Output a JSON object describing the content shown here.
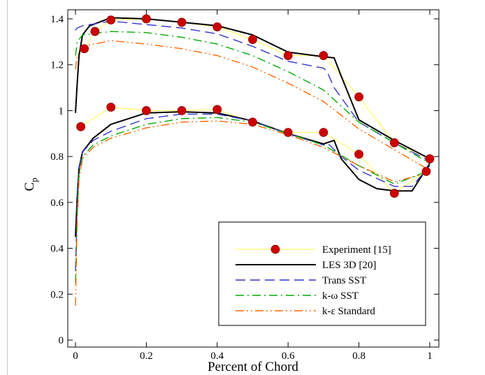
{
  "chart_data": {
    "type": "line",
    "title": "",
    "xlabel": "Percent of Chord",
    "ylabel": "C",
    "ylabel_subscript": "p",
    "xlim": [
      0,
      1
    ],
    "ylim": [
      0,
      1.4
    ],
    "xticks": [
      0,
      0.2,
      0.4,
      0.6,
      0.8,
      1
    ],
    "xtick_labels": [
      "0",
      "0.2",
      "0.4",
      "0.6",
      "0.8",
      "1"
    ],
    "yticks": [
      0,
      0.2,
      0.4,
      0.6,
      0.8,
      1,
      1.2,
      1.4
    ],
    "ytick_labels": [
      "0",
      "0.2",
      "0.4",
      "0.6",
      "0.8",
      "1",
      "1.2",
      "1.4"
    ],
    "legend_position": "bottom-right",
    "grid": false,
    "series": [
      {
        "name": "Experiment [15]",
        "style": "line-markers",
        "color": "#ffff66",
        "marker_color": "#cc0000",
        "upper": [
          [
            0.025,
            1.27
          ],
          [
            0.055,
            1.345
          ],
          [
            0.1,
            1.395
          ],
          [
            0.2,
            1.4
          ],
          [
            0.3,
            1.385
          ],
          [
            0.4,
            1.365
          ],
          [
            0.5,
            1.31
          ],
          [
            0.6,
            1.24
          ],
          [
            0.7,
            1.24
          ],
          [
            0.8,
            1.06
          ],
          [
            0.9,
            0.86
          ],
          [
            1.0,
            0.79
          ]
        ],
        "lower": [
          [
            0.015,
            0.93
          ],
          [
            0.1,
            1.015
          ],
          [
            0.2,
            1.0
          ],
          [
            0.3,
            1.0
          ],
          [
            0.4,
            1.005
          ],
          [
            0.5,
            0.95
          ],
          [
            0.6,
            0.905
          ],
          [
            0.7,
            0.905
          ],
          [
            0.8,
            0.81
          ],
          [
            0.9,
            0.64
          ],
          [
            0.99,
            0.735
          ]
        ]
      },
      {
        "name": "LES 3D [20]",
        "style": "solid",
        "color": "#000000",
        "upper": [
          [
            0,
            0.99
          ],
          [
            0.005,
            1.12
          ],
          [
            0.01,
            1.24
          ],
          [
            0.02,
            1.33
          ],
          [
            0.04,
            1.37
          ],
          [
            0.1,
            1.405
          ],
          [
            0.2,
            1.4
          ],
          [
            0.3,
            1.385
          ],
          [
            0.4,
            1.37
          ],
          [
            0.5,
            1.33
          ],
          [
            0.6,
            1.255
          ],
          [
            0.7,
            1.235
          ],
          [
            0.73,
            1.23
          ],
          [
            0.75,
            1.15
          ],
          [
            0.8,
            0.96
          ],
          [
            0.9,
            0.87
          ],
          [
            1.0,
            0.79
          ]
        ],
        "lower": [
          [
            0,
            0.45
          ],
          [
            0.005,
            0.62
          ],
          [
            0.01,
            0.75
          ],
          [
            0.02,
            0.82
          ],
          [
            0.05,
            0.88
          ],
          [
            0.1,
            0.94
          ],
          [
            0.2,
            0.99
          ],
          [
            0.3,
            0.995
          ],
          [
            0.4,
            0.99
          ],
          [
            0.5,
            0.955
          ],
          [
            0.6,
            0.9
          ],
          [
            0.7,
            0.855
          ],
          [
            0.73,
            0.87
          ],
          [
            0.75,
            0.79
          ],
          [
            0.8,
            0.7
          ],
          [
            0.85,
            0.66
          ],
          [
            0.9,
            0.65
          ],
          [
            0.95,
            0.65
          ],
          [
            1.0,
            0.77
          ]
        ]
      },
      {
        "name": "Trans SST",
        "style": "dashed",
        "color": "#3333cc",
        "upper": [
          [
            0,
            1.35
          ],
          [
            0.005,
            1.36
          ],
          [
            0.02,
            1.37
          ],
          [
            0.1,
            1.39
          ],
          [
            0.2,
            1.375
          ],
          [
            0.3,
            1.36
          ],
          [
            0.4,
            1.335
          ],
          [
            0.5,
            1.28
          ],
          [
            0.6,
            1.215
          ],
          [
            0.7,
            1.185
          ],
          [
            0.71,
            1.17
          ],
          [
            0.73,
            1.1
          ],
          [
            0.8,
            0.95
          ],
          [
            0.9,
            0.86
          ],
          [
            1.0,
            0.78
          ]
        ],
        "lower": [
          [
            0,
            0.3
          ],
          [
            0.005,
            0.6
          ],
          [
            0.01,
            0.75
          ],
          [
            0.02,
            0.82
          ],
          [
            0.05,
            0.87
          ],
          [
            0.1,
            0.91
          ],
          [
            0.2,
            0.965
          ],
          [
            0.3,
            0.985
          ],
          [
            0.4,
            0.985
          ],
          [
            0.5,
            0.955
          ],
          [
            0.6,
            0.9
          ],
          [
            0.7,
            0.85
          ],
          [
            0.71,
            0.86
          ],
          [
            0.75,
            0.8
          ],
          [
            0.8,
            0.74
          ],
          [
            0.9,
            0.67
          ],
          [
            0.95,
            0.67
          ],
          [
            1.0,
            0.76
          ]
        ]
      },
      {
        "name": "k-ω SST",
        "style": "dashdot",
        "color": "#00aa00",
        "upper": [
          [
            0,
            1.24
          ],
          [
            0.005,
            1.3
          ],
          [
            0.02,
            1.33
          ],
          [
            0.1,
            1.345
          ],
          [
            0.2,
            1.34
          ],
          [
            0.3,
            1.32
          ],
          [
            0.4,
            1.29
          ],
          [
            0.5,
            1.24
          ],
          [
            0.6,
            1.17
          ],
          [
            0.7,
            1.09
          ],
          [
            0.8,
            0.95
          ],
          [
            0.9,
            0.86
          ],
          [
            1.0,
            0.77
          ]
        ],
        "lower": [
          [
            0,
            0.25
          ],
          [
            0.005,
            0.55
          ],
          [
            0.01,
            0.72
          ],
          [
            0.02,
            0.8
          ],
          [
            0.05,
            0.85
          ],
          [
            0.1,
            0.89
          ],
          [
            0.2,
            0.94
          ],
          [
            0.3,
            0.965
          ],
          [
            0.4,
            0.97
          ],
          [
            0.5,
            0.95
          ],
          [
            0.6,
            0.9
          ],
          [
            0.7,
            0.85
          ],
          [
            0.8,
            0.76
          ],
          [
            0.9,
            0.68
          ],
          [
            1.0,
            0.74
          ]
        ]
      },
      {
        "name": "k-ε Standard",
        "style": "dashdotdot",
        "color": "#ff6600",
        "upper": [
          [
            0,
            1.18
          ],
          [
            0.005,
            1.24
          ],
          [
            0.02,
            1.28
          ],
          [
            0.1,
            1.305
          ],
          [
            0.2,
            1.29
          ],
          [
            0.3,
            1.27
          ],
          [
            0.4,
            1.24
          ],
          [
            0.5,
            1.19
          ],
          [
            0.6,
            1.12
          ],
          [
            0.7,
            1.04
          ],
          [
            0.8,
            0.92
          ],
          [
            0.9,
            0.83
          ],
          [
            1.0,
            0.74
          ]
        ],
        "lower": [
          [
            0,
            0.15
          ],
          [
            0.005,
            0.52
          ],
          [
            0.01,
            0.7
          ],
          [
            0.02,
            0.79
          ],
          [
            0.05,
            0.84
          ],
          [
            0.1,
            0.88
          ],
          [
            0.2,
            0.925
          ],
          [
            0.3,
            0.95
          ],
          [
            0.4,
            0.955
          ],
          [
            0.5,
            0.94
          ],
          [
            0.6,
            0.895
          ],
          [
            0.7,
            0.84
          ],
          [
            0.8,
            0.76
          ],
          [
            0.9,
            0.69
          ],
          [
            1.0,
            0.73
          ]
        ]
      }
    ]
  }
}
